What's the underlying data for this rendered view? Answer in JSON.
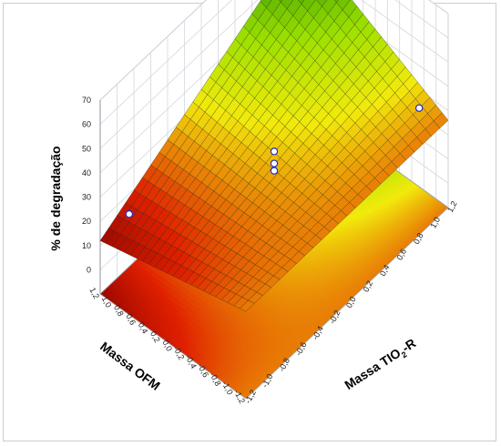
{
  "chart_data": {
    "type": "surface3d",
    "zlabel": "% de degradação",
    "ylabel": "Massa OFM",
    "xlabel_main": "Massa TIO",
    "xlabel_sub": "2",
    "xlabel_tail": "-R",
    "zticks": [
      "70",
      "60",
      "50",
      "40",
      "30",
      "20",
      "10",
      "0"
    ],
    "yticks": [
      "1,2",
      "1,0",
      "0,8",
      "0,6",
      "0,4",
      "0,2",
      "0,0",
      "-0,2",
      "-0,4",
      "-0,6",
      "-0,8",
      "-1,0",
      "-1,2"
    ],
    "xticks": [
      "-1,2",
      "-1,0",
      "-0,8",
      "-0,6",
      "-0,4",
      "-0,2",
      "0,0",
      "0,2",
      "0,4",
      "0,6",
      "0,8",
      "1,0",
      "1,2"
    ],
    "xlim": [
      -1.2,
      1.2
    ],
    "ylim": [
      -1.2,
      1.2
    ],
    "zlim": [
      0,
      70
    ],
    "surface_corners": {
      "x_low_y_high": 12,
      "x_high_y_high": 58,
      "x_high_y_low": 26,
      "x_low_y_low": 26
    },
    "points": [
      {
        "x": -1,
        "y": 1,
        "z": 20
      },
      {
        "x": 1,
        "y": 1,
        "z": 57
      },
      {
        "x": 1,
        "y": -1,
        "z": 34
      },
      {
        "x": 0,
        "y": 0,
        "z": 31
      },
      {
        "x": 0,
        "y": 0,
        "z": 26
      },
      {
        "x": 0,
        "y": 0,
        "z": 23
      }
    ],
    "grid": true,
    "colors": {
      "low": "#8b0000",
      "mid_low": "#e02000",
      "mid": "#f2ea0c",
      "mid_high": "#9ce000",
      "high": "#1e8a00",
      "point": "#1f2fd0"
    }
  }
}
